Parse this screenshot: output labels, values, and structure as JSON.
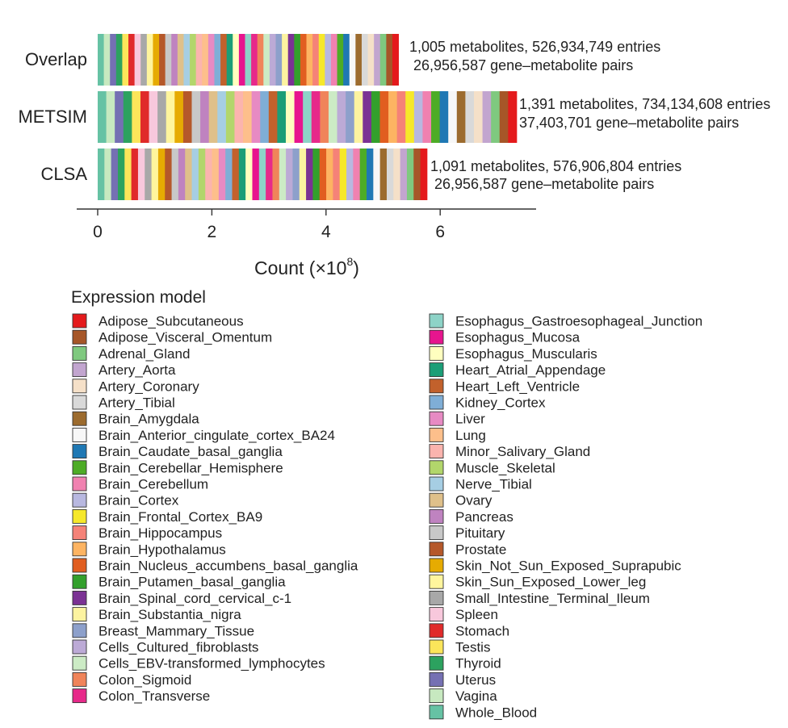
{
  "chart_data": {
    "type": "bar",
    "orientation": "horizontal",
    "stacked": true,
    "categories": [
      "Overlap",
      "METSIM",
      "CLSA"
    ],
    "values": [
      5.27,
      7.34,
      5.77
    ],
    "xlabel": "Count (×10",
    "xlabel_exponent": "8",
    "xlabel_suffix": ")",
    "xlim": [
      0,
      7.6
    ],
    "xticks": [
      "0",
      "2",
      "4",
      "6"
    ],
    "annotations": [
      {
        "line1": "1,005 metabolites, 526,934,749 entries",
        "line2": "26,956,587 gene–metabolite pairs"
      },
      {
        "line1": "1,391 metabolites, 734,134,608 entries",
        "line2": "37,403,701 gene–metabolite pairs"
      },
      {
        "line1": "1,091 metabolites, 576,906,804 entries",
        "line2": "26,956,587 gene–metabolite pairs"
      }
    ],
    "grid": false,
    "legend": {
      "title": "Expression model",
      "placement": "bottom",
      "entries": [
        {
          "name": "Adipose_Subcutaneous",
          "color": "#e41a1c"
        },
        {
          "name": "Adipose_Visceral_Omentum",
          "color": "#a65628"
        },
        {
          "name": "Adrenal_Gland",
          "color": "#7fc97f"
        },
        {
          "name": "Artery_Aorta",
          "color": "#c2a5cf"
        },
        {
          "name": "Artery_Coronary",
          "color": "#f5e0c8"
        },
        {
          "name": "Artery_Tibial",
          "color": "#d9d9d9"
        },
        {
          "name": "Brain_Amygdala",
          "color": "#9c6b2e"
        },
        {
          "name": "Brain_Anterior_cingulate_cortex_BA24",
          "color": "#f7f7f7"
        },
        {
          "name": "Brain_Caudate_basal_ganglia",
          "color": "#1f78b4"
        },
        {
          "name": "Brain_Cerebellar_Hemisphere",
          "color": "#4dac26"
        },
        {
          "name": "Brain_Cerebellum",
          "color": "#f081b0"
        },
        {
          "name": "Brain_Cortex",
          "color": "#b8b8e0"
        },
        {
          "name": "Brain_Frontal_Cortex_BA9",
          "color": "#f6e82a"
        },
        {
          "name": "Brain_Hippocampus",
          "color": "#f58278"
        },
        {
          "name": "Brain_Hypothalamus",
          "color": "#fdb462"
        },
        {
          "name": "Brain_Nucleus_accumbens_basal_ganglia",
          "color": "#e15e20"
        },
        {
          "name": "Brain_Putamen_basal_ganglia",
          "color": "#33a02c"
        },
        {
          "name": "Brain_Spinal_cord_cervical_c-1",
          "color": "#7b3294"
        },
        {
          "name": "Brain_Substantia_nigra",
          "color": "#fcf3a0"
        },
        {
          "name": "Breast_Mammary_Tissue",
          "color": "#8da0cb"
        },
        {
          "name": "Cells_Cultured_fibroblasts",
          "color": "#bcaad6"
        },
        {
          "name": "Cells_EBV-transformed_lymphocytes",
          "color": "#ccebc5"
        },
        {
          "name": "Colon_Sigmoid",
          "color": "#f0845a"
        },
        {
          "name": "Colon_Transverse",
          "color": "#e7298a"
        },
        {
          "name": "Esophagus_Gastroesophageal_Junction",
          "color": "#8dd3c7"
        },
        {
          "name": "Esophagus_Mucosa",
          "color": "#e7158e"
        },
        {
          "name": "Esophagus_Muscularis",
          "color": "#ffffbf"
        },
        {
          "name": "Heart_Atrial_Appendage",
          "color": "#1b9e77"
        },
        {
          "name": "Heart_Left_Ventricle",
          "color": "#c2612c"
        },
        {
          "name": "Kidney_Cortex",
          "color": "#7faed6"
        },
        {
          "name": "Liver",
          "color": "#e78ac3"
        },
        {
          "name": "Lung",
          "color": "#fdbf8b"
        },
        {
          "name": "Minor_Salivary_Gland",
          "color": "#fbb4ae"
        },
        {
          "name": "Muscle_Skeletal",
          "color": "#b2d66b"
        },
        {
          "name": "Nerve_Tibial",
          "color": "#a6cee3"
        },
        {
          "name": "Ovary",
          "color": "#dfc08a"
        },
        {
          "name": "Pancreas",
          "color": "#bf83c0"
        },
        {
          "name": "Pituitary",
          "color": "#c8c8c8"
        },
        {
          "name": "Prostate",
          "color": "#b5582a"
        },
        {
          "name": "Skin_Not_Sun_Exposed_Suprapubic",
          "color": "#e6ab02"
        },
        {
          "name": "Skin_Sun_Exposed_Lower_leg",
          "color": "#fff59d"
        },
        {
          "name": "Small_Intestine_Terminal_Ileum",
          "color": "#a8a8a8"
        },
        {
          "name": "Spleen",
          "color": "#f8c8dc"
        },
        {
          "name": "Stomach",
          "color": "#e02a2a"
        },
        {
          "name": "Testis",
          "color": "#fbe55a"
        },
        {
          "name": "Thyroid",
          "color": "#2ca25f"
        },
        {
          "name": "Uterus",
          "color": "#7570b3"
        },
        {
          "name": "Vagina",
          "color": "#c7e9c0"
        },
        {
          "name": "Whole_Blood",
          "color": "#66c2a4"
        }
      ]
    }
  }
}
